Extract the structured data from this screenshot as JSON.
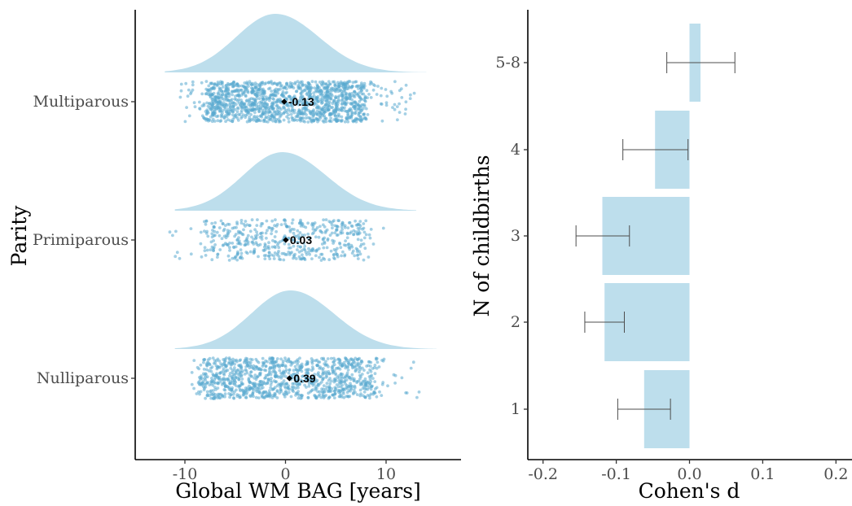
{
  "chart_data": [
    {
      "type": "raincloud",
      "ylabel": "Parity",
      "xlabel": "Global WM BAG [years]",
      "xlim": [
        -15,
        17.5
      ],
      "xticks": [
        -10,
        0,
        10
      ],
      "tick_labels": [
        "-10",
        "0",
        "10"
      ],
      "categories": [
        "Multiparous",
        "Primiparous",
        "Nulliparous"
      ],
      "groups": [
        {
          "name": "Multiparous",
          "mean": -0.13,
          "label": "-0.13",
          "range": [
            -10.8,
            12.8
          ],
          "core_range": [
            -8,
            8
          ],
          "n_points": 1400,
          "density_mode": -1.0,
          "density_range": [
            -12,
            14
          ]
        },
        {
          "name": "Primiparous",
          "mean": 0.03,
          "label": "0.03",
          "range": [
            -11.5,
            10.5
          ],
          "core_range": [
            -8,
            8
          ],
          "n_points": 500,
          "density_mode": -0.3,
          "density_range": [
            -11,
            13
          ]
        },
        {
          "name": "Nulliparous",
          "mean": 0.39,
          "label": "0.39",
          "range": [
            -9.8,
            13.6
          ],
          "core_range": [
            -8.5,
            9
          ],
          "n_points": 1100,
          "density_mode": 0.5,
          "density_range": [
            -11,
            15
          ]
        }
      ],
      "colors": {
        "density": "#bddeec",
        "points": "#5aa9cf",
        "mean": "#000000"
      }
    },
    {
      "type": "bar",
      "orientation": "horizontal",
      "ylabel": "N of childbirths",
      "xlabel": "Cohen's d",
      "xlim": [
        -0.222,
        0.222
      ],
      "xticks": [
        -0.2,
        -0.1,
        0.0,
        0.1,
        0.2
      ],
      "tick_labels": [
        "-0.2",
        "-0.1",
        "0.0",
        "0.1",
        "0.2"
      ],
      "categories": [
        "1",
        "2",
        "3",
        "4",
        "5-8"
      ],
      "values": [
        -0.062,
        -0.116,
        -0.119,
        -0.047,
        0.015
      ],
      "ci_lower": [
        -0.098,
        -0.143,
        -0.155,
        -0.091,
        -0.031
      ],
      "ci_upper": [
        -0.026,
        -0.089,
        -0.082,
        -0.002,
        0.062
      ],
      "colors": {
        "bar": "#bddeec",
        "error": "#4d4d4d"
      }
    }
  ]
}
